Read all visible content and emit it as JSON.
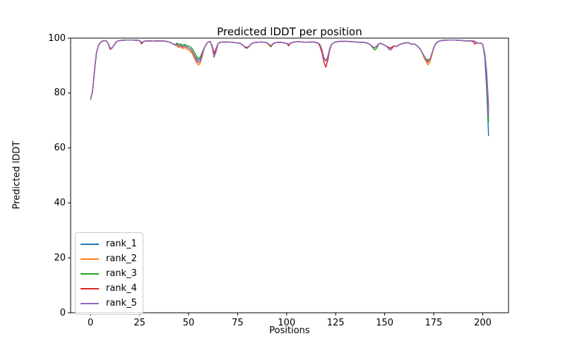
{
  "figure": {
    "background": "#ffffff",
    "spine_color": "#000000",
    "legend_border_color": "#cccccc"
  },
  "chart_data": {
    "type": "line",
    "title": "Predicted lDDT per position",
    "xlabel": "Positions",
    "ylabel": "Predicted lDDT",
    "xlim": [
      -10.15,
      213.15
    ],
    "ylim": [
      0,
      100
    ],
    "xticks": [
      0,
      25,
      50,
      75,
      100,
      125,
      150,
      175,
      200
    ],
    "yticks": [
      0,
      20,
      40,
      60,
      80,
      100
    ],
    "grid": false,
    "legend_position": "lower-left",
    "base_points": [
      [
        0,
        77.7
      ],
      [
        1,
        80.5
      ],
      [
        2,
        88
      ],
      [
        3,
        94.5
      ],
      [
        4,
        97.3
      ],
      [
        5,
        98.4
      ],
      [
        6,
        98.9
      ],
      [
        7,
        99.1
      ],
      [
        8,
        99.0
      ],
      [
        9,
        98.1
      ],
      [
        10,
        96.3
      ],
      [
        11,
        96.4
      ],
      [
        12,
        97.4
      ],
      [
        13,
        98.6
      ],
      [
        14,
        99.0
      ],
      [
        16,
        99.2
      ],
      [
        18,
        99.3
      ],
      [
        20,
        99.3
      ],
      [
        22,
        99.3
      ],
      [
        24,
        99.2
      ],
      [
        25,
        99.1
      ],
      [
        26,
        98.4
      ],
      [
        27,
        98.7
      ],
      [
        28,
        99.0
      ],
      [
        30,
        99.0
      ],
      [
        32,
        98.9
      ],
      [
        34,
        99.0
      ],
      [
        36,
        99.0
      ],
      [
        38,
        98.9
      ],
      [
        40,
        98.6
      ],
      [
        41,
        98.3
      ],
      [
        42,
        97.9
      ],
      [
        43,
        97.5
      ],
      [
        44,
        97.7
      ],
      [
        45,
        97.1
      ],
      [
        46,
        97.4
      ],
      [
        47,
        96.8
      ],
      [
        48,
        97.2
      ],
      [
        49,
        96.7
      ],
      [
        50,
        96.4
      ],
      [
        51,
        96.0
      ],
      [
        52,
        95.0
      ],
      [
        53,
        93.6
      ],
      [
        54,
        92.2
      ],
      [
        55,
        91.4
      ],
      [
        56,
        92.0
      ],
      [
        57,
        94.2
      ],
      [
        58,
        96.4
      ],
      [
        59,
        97.8
      ],
      [
        60,
        98.6
      ],
      [
        61,
        98.8
      ],
      [
        62,
        97.2
      ],
      [
        63,
        94.4
      ],
      [
        64,
        96.0
      ],
      [
        65,
        98.0
      ],
      [
        66,
        98.5
      ],
      [
        68,
        98.6
      ],
      [
        70,
        98.6
      ],
      [
        72,
        98.5
      ],
      [
        74,
        98.3
      ],
      [
        76,
        98.2
      ],
      [
        77,
        97.8
      ],
      [
        78,
        97.2
      ],
      [
        79,
        96.7
      ],
      [
        80,
        96.6
      ],
      [
        81,
        97.1
      ],
      [
        82,
        97.9
      ],
      [
        83,
        98.3
      ],
      [
        85,
        98.5
      ],
      [
        87,
        98.6
      ],
      [
        89,
        98.5
      ],
      [
        90,
        98.3
      ],
      [
        91,
        97.8
      ],
      [
        92,
        97.2
      ],
      [
        93,
        97.9
      ],
      [
        94,
        98.3
      ],
      [
        96,
        98.5
      ],
      [
        98,
        98.4
      ],
      [
        100,
        98.1
      ],
      [
        101,
        97.7
      ],
      [
        102,
        98.2
      ],
      [
        104,
        98.6
      ],
      [
        106,
        98.7
      ],
      [
        108,
        98.6
      ],
      [
        110,
        98.5
      ],
      [
        112,
        98.6
      ],
      [
        114,
        98.6
      ],
      [
        115,
        98.4
      ],
      [
        116,
        98.2
      ],
      [
        117,
        97.6
      ],
      [
        118,
        95.8
      ],
      [
        119,
        92.8
      ],
      [
        120,
        91.6
      ],
      [
        121,
        93.2
      ],
      [
        122,
        96.2
      ],
      [
        123,
        97.8
      ],
      [
        124,
        98.3
      ],
      [
        125,
        98.6
      ],
      [
        127,
        98.8
      ],
      [
        129,
        98.8
      ],
      [
        131,
        98.8
      ],
      [
        133,
        98.7
      ],
      [
        135,
        98.6
      ],
      [
        137,
        98.5
      ],
      [
        139,
        98.5
      ],
      [
        141,
        98.2
      ],
      [
        142,
        97.9
      ],
      [
        143,
        97.4
      ],
      [
        144,
        96.8
      ],
      [
        145,
        96.5
      ],
      [
        146,
        97.1
      ],
      [
        147,
        97.9
      ],
      [
        148,
        98.1
      ],
      [
        149,
        97.8
      ],
      [
        150,
        97.4
      ],
      [
        151,
        97.0
      ],
      [
        152,
        96.6
      ],
      [
        153,
        96.3
      ],
      [
        154,
        96.9
      ],
      [
        155,
        97.2
      ],
      [
        156,
        96.9
      ],
      [
        157,
        97.4
      ],
      [
        158,
        97.8
      ],
      [
        159,
        98.0
      ],
      [
        160,
        98.2
      ],
      [
        161,
        98.3
      ],
      [
        162,
        98.4
      ],
      [
        163,
        98.0
      ],
      [
        164,
        97.7
      ],
      [
        165,
        97.9
      ],
      [
        166,
        97.5
      ],
      [
        167,
        96.9
      ],
      [
        168,
        96.1
      ],
      [
        169,
        94.9
      ],
      [
        170,
        93.6
      ],
      [
        171,
        92.4
      ],
      [
        172,
        91.6
      ],
      [
        173,
        92.2
      ],
      [
        174,
        94.2
      ],
      [
        175,
        96.4
      ],
      [
        176,
        97.9
      ],
      [
        177,
        98.6
      ],
      [
        178,
        99.0
      ],
      [
        180,
        99.2
      ],
      [
        182,
        99.3
      ],
      [
        184,
        99.3
      ],
      [
        186,
        99.3
      ],
      [
        188,
        99.2
      ],
      [
        190,
        99.1
      ],
      [
        191,
        99.0
      ],
      [
        192,
        99.0
      ],
      [
        193,
        99.0
      ],
      [
        195,
        99.0
      ],
      [
        196,
        98.8
      ],
      [
        197,
        98.3
      ],
      [
        198,
        98.1
      ],
      [
        199,
        98.2
      ],
      [
        200,
        97.7
      ],
      [
        201,
        94.5
      ],
      [
        202,
        86
      ],
      [
        203,
        73
      ]
    ],
    "series": [
      {
        "name": "rank_1",
        "color": "#1f77b4",
        "overrides": [
          [
            54,
            92.6
          ],
          [
            55,
            92.0
          ],
          [
            56,
            92.4
          ],
          [
            62,
            96.8
          ],
          [
            63,
            93.1
          ],
          [
            64,
            95.2
          ],
          [
            120,
            91.8
          ],
          [
            172,
            91.9
          ],
          [
            201,
            93.5
          ],
          [
            202,
            82
          ],
          [
            203,
            64.5
          ]
        ]
      },
      {
        "name": "rank_2",
        "color": "#ff7f0e",
        "overrides": [
          [
            44,
            97.2
          ],
          [
            45,
            96.6
          ],
          [
            46,
            96.9
          ],
          [
            47,
            96.2
          ],
          [
            48,
            96.6
          ],
          [
            49,
            96.1
          ],
          [
            50,
            95.7
          ],
          [
            51,
            95.2
          ],
          [
            52,
            94.2
          ],
          [
            53,
            92.6
          ],
          [
            54,
            91.2
          ],
          [
            55,
            90.2
          ],
          [
            56,
            91.0
          ],
          [
            57,
            93.4
          ],
          [
            91,
            97.4
          ],
          [
            92,
            96.8
          ],
          [
            170,
            93.0
          ],
          [
            171,
            91.6
          ],
          [
            172,
            90.3
          ],
          [
            173,
            91.2
          ],
          [
            174,
            93.6
          ],
          [
            202,
            88
          ],
          [
            203,
            75.5
          ]
        ]
      },
      {
        "name": "rank_3",
        "color": "#2ca02c",
        "overrides": [
          [
            44,
            98.2
          ],
          [
            45,
            97.7
          ],
          [
            46,
            97.9
          ],
          [
            47,
            97.4
          ],
          [
            48,
            97.7
          ],
          [
            49,
            97.3
          ],
          [
            50,
            97.1
          ],
          [
            51,
            96.8
          ],
          [
            52,
            96.0
          ],
          [
            53,
            94.8
          ],
          [
            54,
            93.4
          ],
          [
            55,
            92.6
          ],
          [
            56,
            93.1
          ],
          [
            57,
            94.9
          ],
          [
            92,
            96.9
          ],
          [
            144,
            96.4
          ],
          [
            145,
            95.7
          ],
          [
            146,
            96.4
          ],
          [
            172,
            92.2
          ],
          [
            202,
            87
          ],
          [
            203,
            69.5
          ]
        ]
      },
      {
        "name": "rank_4",
        "color": "#d62728",
        "overrides": [
          [
            10,
            95.9
          ],
          [
            26,
            97.9
          ],
          [
            54,
            92.0
          ],
          [
            55,
            91.2
          ],
          [
            56,
            91.7
          ],
          [
            101,
            97.2
          ],
          [
            117,
            97.0
          ],
          [
            118,
            94.8
          ],
          [
            119,
            91.3
          ],
          [
            120,
            89.4
          ],
          [
            121,
            92.0
          ],
          [
            122,
            95.8
          ],
          [
            172,
            91.2
          ],
          [
            195,
            98.8
          ],
          [
            196,
            97.8
          ],
          [
            197,
            98.4
          ],
          [
            202,
            87.5
          ],
          [
            203,
            74
          ]
        ]
      },
      {
        "name": "rank_5",
        "color": "#9467bd",
        "overrides": [
          [
            54,
            91.9
          ],
          [
            55,
            91.1
          ],
          [
            56,
            91.7
          ],
          [
            62,
            96.9
          ],
          [
            63,
            93.3
          ],
          [
            64,
            95.0
          ],
          [
            79,
            96.4
          ],
          [
            80,
            96.3
          ],
          [
            120,
            91.5
          ],
          [
            152,
            96.1
          ],
          [
            153,
            95.6
          ],
          [
            154,
            96.4
          ],
          [
            172,
            91.3
          ],
          [
            202,
            87.2
          ],
          [
            203,
            72
          ]
        ]
      }
    ]
  }
}
